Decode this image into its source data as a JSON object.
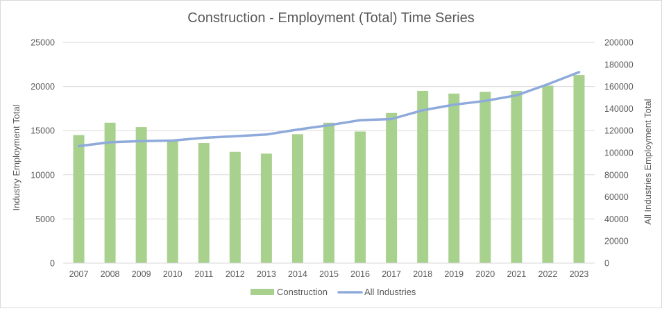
{
  "chart_data": {
    "type": "bar+line",
    "title": "Construction - Employment (Total) Time Series",
    "categories": [
      "2007",
      "2008",
      "2009",
      "2010",
      "2011",
      "2012",
      "2013",
      "2014",
      "2015",
      "2016",
      "2017",
      "2018",
      "2019",
      "2020",
      "2021",
      "2022",
      "2023"
    ],
    "series": [
      {
        "name": "Construction",
        "type": "bar",
        "axis": "left",
        "color": "#a9d18e",
        "values": [
          14500,
          15900,
          15400,
          13900,
          13600,
          12600,
          12400,
          14600,
          15900,
          14900,
          17000,
          19500,
          19200,
          19400,
          19500,
          20100,
          21300
        ]
      },
      {
        "name": "All Industries",
        "type": "line",
        "axis": "right",
        "color": "#8eaadb",
        "values": [
          106000,
          109500,
          110500,
          111000,
          113500,
          115000,
          116500,
          121000,
          125000,
          129500,
          130500,
          138500,
          143500,
          147000,
          152000,
          162000,
          173000
        ]
      }
    ],
    "left_axis": {
      "label": "Industry Employment Total",
      "ylim": [
        0,
        25000
      ],
      "ticks": [
        "0",
        "5000",
        "10000",
        "15000",
        "20000",
        "25000"
      ]
    },
    "right_axis": {
      "label": "All Industries Employment Total",
      "ylim": [
        0,
        200000
      ],
      "ticks": [
        "0",
        "20000",
        "40000",
        "60000",
        "80000",
        "100000",
        "120000",
        "140000",
        "160000",
        "180000",
        "200000"
      ]
    },
    "grid": true,
    "legend_position": "bottom"
  }
}
